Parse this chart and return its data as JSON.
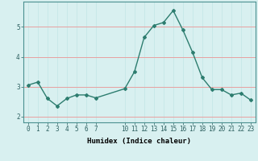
{
  "x": [
    0,
    1,
    2,
    3,
    4,
    5,
    6,
    7,
    10,
    11,
    12,
    13,
    14,
    15,
    16,
    17,
    18,
    19,
    20,
    21,
    22,
    23
  ],
  "y": [
    3.05,
    3.15,
    2.6,
    2.35,
    2.6,
    2.72,
    2.72,
    2.62,
    2.93,
    3.5,
    4.65,
    5.05,
    5.15,
    5.55,
    4.9,
    4.15,
    3.3,
    2.9,
    2.9,
    2.72,
    2.78,
    2.55
  ],
  "line_color": "#2d7d6f",
  "bg_color": "#d8f0f0",
  "grid_color_v": "#c8e8e8",
  "grid_color_h": "#e8a0a0",
  "xlabel": "Humidex (Indice chaleur)",
  "ylim": [
    1.8,
    5.85
  ],
  "xlim": [
    -0.5,
    23.5
  ],
  "yticks": [
    2,
    3,
    4,
    5
  ],
  "xticks": [
    0,
    1,
    2,
    3,
    4,
    5,
    6,
    7,
    10,
    11,
    12,
    13,
    14,
    15,
    16,
    17,
    18,
    19,
    20,
    21,
    22,
    23
  ],
  "marker": "D",
  "marker_size": 2.0,
  "line_width": 1.0,
  "tick_fontsize": 5.5,
  "xlabel_fontsize": 6.5
}
